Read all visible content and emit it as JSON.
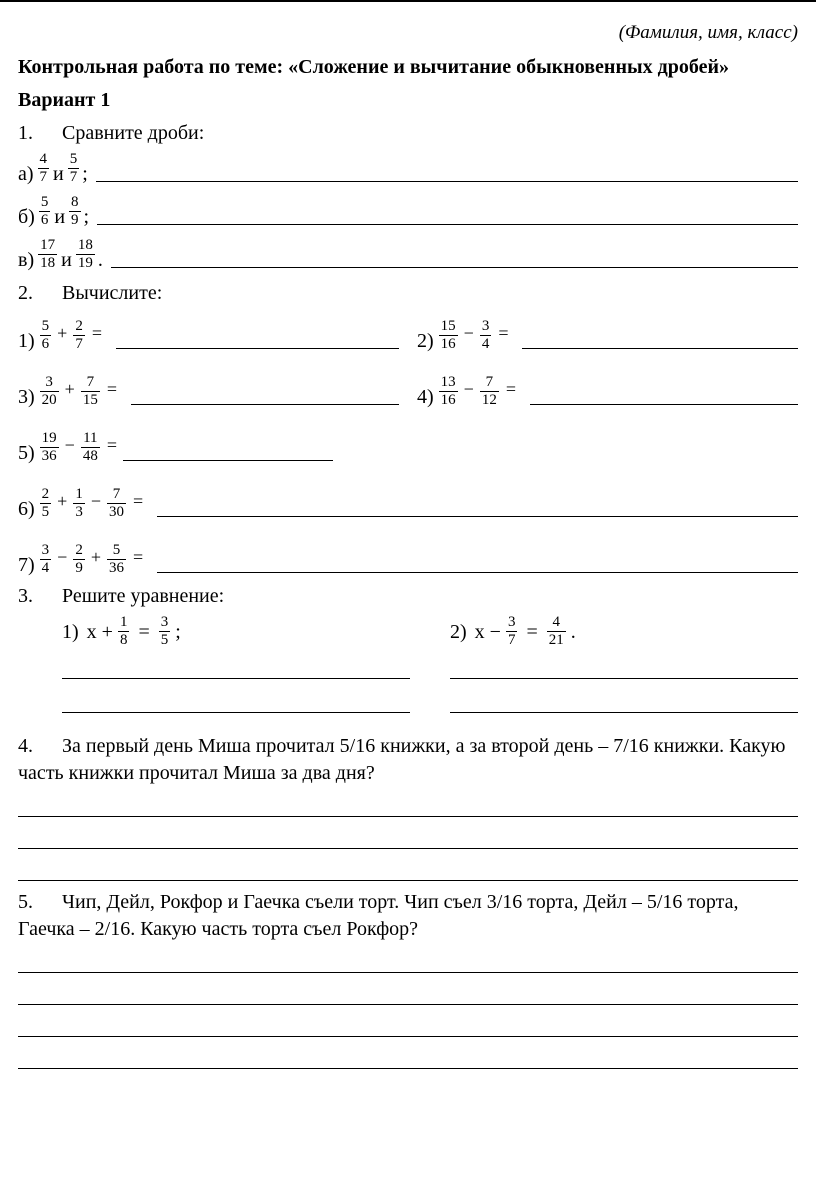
{
  "header_note": "(Фамилия, имя, класс)",
  "title": "Контрольная работа по теме: «Сложение и вычитание обыкновенных дробей»",
  "variant": "Вариант 1",
  "and_word": "и",
  "t1": {
    "num": "1.",
    "text": "Сравните дроби:",
    "items": [
      {
        "label": "а)",
        "f1": {
          "n": "4",
          "d": "7"
        },
        "f2": {
          "n": "5",
          "d": "7"
        },
        "punct": ";"
      },
      {
        "label": "б)",
        "f1": {
          "n": "5",
          "d": "6"
        },
        "f2": {
          "n": "8",
          "d": "9"
        },
        "punct": ";"
      },
      {
        "label": "в)",
        "f1": {
          "n": "17",
          "d": "18"
        },
        "f2": {
          "n": "18",
          "d": "19"
        },
        "punct": "."
      }
    ]
  },
  "t2": {
    "num": "2.",
    "text": "Вычислите:",
    "rows": [
      {
        "idx": "1)",
        "parts": [
          {
            "n": "5",
            "d": "6"
          },
          {
            "op": "+"
          },
          {
            "n": "2",
            "d": "7"
          }
        ],
        "span": 1
      },
      {
        "idx": "2)",
        "parts": [
          {
            "n": "15",
            "d": "16"
          },
          {
            "op": "−"
          },
          {
            "n": "3",
            "d": "4"
          }
        ],
        "span": 1
      },
      {
        "idx": "3)",
        "parts": [
          {
            "n": "3",
            "d": "20"
          },
          {
            "op": "+"
          },
          {
            "n": "7",
            "d": "15"
          }
        ],
        "span": 1
      },
      {
        "idx": "4)",
        "parts": [
          {
            "n": "13",
            "d": "16"
          },
          {
            "op": "−"
          },
          {
            "n": "7",
            "d": "12"
          }
        ],
        "span": 1
      },
      {
        "idx": "5)",
        "parts": [
          {
            "n": "19",
            "d": "36"
          },
          {
            "op": "−"
          },
          {
            "n": "11",
            "d": "48"
          }
        ],
        "span": 1,
        "blank_w": 210
      },
      {
        "idx": "6)",
        "parts": [
          {
            "n": "2",
            "d": "5"
          },
          {
            "op": "+"
          },
          {
            "n": "1",
            "d": "3"
          },
          {
            "op": "−"
          },
          {
            "n": "7",
            "d": "30"
          }
        ],
        "span": 2
      },
      {
        "idx": "7)",
        "parts": [
          {
            "n": "3",
            "d": "4"
          },
          {
            "op": "−"
          },
          {
            "n": "2",
            "d": "9"
          },
          {
            "op": "+"
          },
          {
            "n": "5",
            "d": "36"
          }
        ],
        "span": 2
      }
    ]
  },
  "t3": {
    "num": "3.",
    "text": "Решите уравнение:",
    "eqns": [
      {
        "idx": "1)",
        "lhs": "x +",
        "f1": {
          "n": "1",
          "d": "8"
        },
        "mid": "=",
        "f2": {
          "n": "3",
          "d": "5"
        },
        "punct": ";"
      },
      {
        "idx": "2)",
        "lhs": "x −",
        "f1": {
          "n": "3",
          "d": "7"
        },
        "mid": "=",
        "f2": {
          "n": "4",
          "d": "21"
        },
        "punct": "."
      }
    ],
    "answer_lines": 2
  },
  "t4": {
    "num": "4.",
    "text": "За первый день Миша прочитал 5/16 книжки, а за второй день – 7/16 книжки. Какую часть книжки прочитал Миша за два дня?",
    "answer_lines": 3
  },
  "t5": {
    "num": "5.",
    "text": "Чип, Дейл, Рокфор и Гаечка съели торт. Чип съел 3/16 торта, Дейл – 5/16 торта, Гаечка – 2/16. Какую часть торта съел Рокфор?",
    "answer_lines": 4
  }
}
